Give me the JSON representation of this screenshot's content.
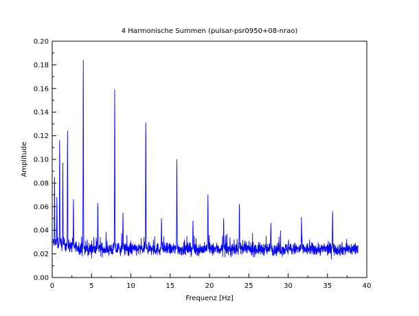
{
  "chart_data": {
    "type": "line",
    "title": "4 Harmonische Summen (pulsar-psr0950+08-nrao)",
    "xlabel": "Frequenz [Hz]",
    "ylabel": "Amplitude",
    "xlim": [
      0,
      40
    ],
    "ylim": [
      0,
      0.2
    ],
    "xticks": [
      "0",
      "5",
      "10",
      "15",
      "20",
      "25",
      "30",
      "35",
      "40"
    ],
    "yticks": [
      "0.00",
      "0.02",
      "0.04",
      "0.06",
      "0.08",
      "0.10",
      "0.12",
      "0.14",
      "0.16",
      "0.18",
      "0.20"
    ],
    "grid": false,
    "series_color": "#0000ff",
    "data_range_x": [
      0.1,
      38.9
    ],
    "noise_floor": 0.024,
    "peaks": [
      {
        "x": 0.3,
        "y": 0.085
      },
      {
        "x": 0.6,
        "y": 0.068
      },
      {
        "x": 0.95,
        "y": 0.116
      },
      {
        "x": 1.35,
        "y": 0.097
      },
      {
        "x": 1.95,
        "y": 0.124
      },
      {
        "x": 2.7,
        "y": 0.066
      },
      {
        "x": 3.95,
        "y": 0.184
      },
      {
        "x": 5.8,
        "y": 0.063
      },
      {
        "x": 7.95,
        "y": 0.159
      },
      {
        "x": 9.0,
        "y": 0.055
      },
      {
        "x": 11.9,
        "y": 0.131
      },
      {
        "x": 13.9,
        "y": 0.05
      },
      {
        "x": 15.85,
        "y": 0.1
      },
      {
        "x": 17.9,
        "y": 0.048
      },
      {
        "x": 19.8,
        "y": 0.07
      },
      {
        "x": 21.8,
        "y": 0.05
      },
      {
        "x": 23.8,
        "y": 0.062
      },
      {
        "x": 27.8,
        "y": 0.046
      },
      {
        "x": 31.7,
        "y": 0.051
      },
      {
        "x": 35.65,
        "y": 0.056
      }
    ]
  }
}
